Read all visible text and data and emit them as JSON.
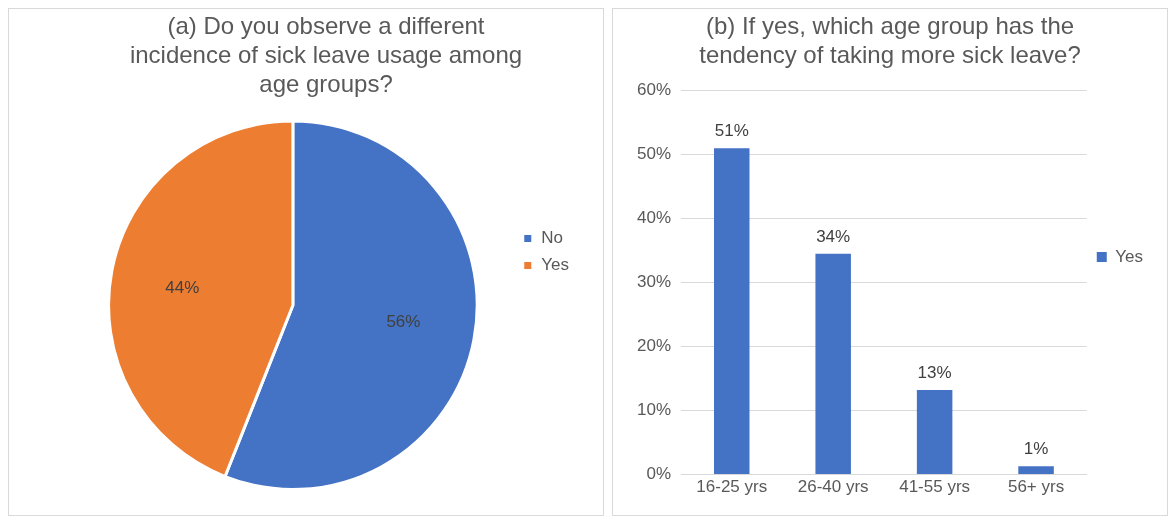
{
  "chart_data": [
    {
      "type": "pie",
      "title": "(a) Do you observe a different incidence of sick leave usage among age groups?",
      "categories": [
        "No",
        "Yes"
      ],
      "values": [
        56,
        44
      ],
      "colors": [
        "#4472c4",
        "#ed7d31"
      ],
      "value_labels": [
        "56%",
        "44%"
      ],
      "legend": "right"
    },
    {
      "type": "bar",
      "title": "(b) If yes, which age group has the tendency of taking more sick leave?",
      "categories": [
        "16-25 yrs",
        "26-40 yrs",
        "41-55 yrs",
        "56+ yrs"
      ],
      "series": [
        {
          "name": "Yes",
          "color": "#4472c4",
          "values": [
            51,
            34.5,
            13.2,
            1.3
          ],
          "value_labels": [
            "51%",
            "34%",
            "13%",
            "1%"
          ]
        }
      ],
      "ylim": [
        0,
        60
      ],
      "yticks": [
        {
          "value": 0,
          "label": "0%"
        },
        {
          "value": 10,
          "label": "10%"
        },
        {
          "value": 20,
          "label": "20%"
        },
        {
          "value": 30,
          "label": "30%"
        },
        {
          "value": 40,
          "label": "40%"
        },
        {
          "value": 50,
          "label": "50%"
        },
        {
          "value": 60,
          "label": "60%"
        }
      ],
      "grid": "y",
      "legend": "right"
    }
  ]
}
